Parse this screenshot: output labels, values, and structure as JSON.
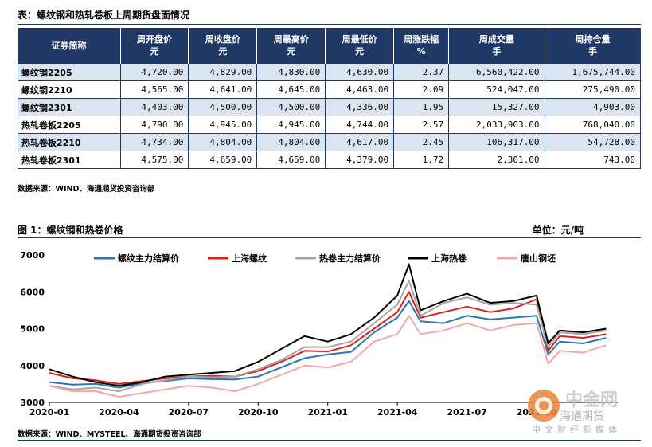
{
  "table_title": "表：螺纹钢和热轧卷板上周期货盘面情况",
  "columns": [
    {
      "l1": "证券简称",
      "l2": ""
    },
    {
      "l1": "周开盘价",
      "l2": "元"
    },
    {
      "l1": "周收盘价",
      "l2": "元"
    },
    {
      "l1": "周最高价",
      "l2": "元"
    },
    {
      "l1": "周最低价",
      "l2": "元"
    },
    {
      "l1": "周涨跌幅",
      "l2": "%"
    },
    {
      "l1": "周成交量",
      "l2": "手"
    },
    {
      "l1": "周持仓量",
      "l2": "手"
    }
  ],
  "rows": [
    [
      "螺纹钢2205",
      "4,720.00",
      "4,829.00",
      "4,830.00",
      "4,630.00",
      "2.37",
      "6,560,422.00",
      "1,675,744.00"
    ],
    [
      "螺纹钢2210",
      "4,565.00",
      "4,641.00",
      "4,645.00",
      "4,463.00",
      "2.09",
      "524,047.00",
      "275,490.00"
    ],
    [
      "螺纹钢2301",
      "4,403.00",
      "4,500.00",
      "4,500.00",
      "4,336.00",
      "1.95",
      "15,327.00",
      "4,903.00"
    ],
    [
      "热轧卷板2205",
      "4,790.00",
      "4,945.00",
      "4,945.00",
      "4,744.00",
      "2.57",
      "2,033,903.00",
      "768,040.00"
    ],
    [
      "热轧卷板2210",
      "4,734.00",
      "4,804.00",
      "4,804.00",
      "4,617.00",
      "2.45",
      "106,317.00",
      "54,728.00"
    ],
    [
      "热轧卷板2301",
      "4,575.00",
      "4,659.00",
      "4,659.00",
      "4,379.00",
      "1.72",
      "2,301.00",
      "743.00"
    ]
  ],
  "table_source": "数据来源：WIND、海通期货投资咨询部",
  "figure_title": "图 1：螺纹钢和热卷价格",
  "figure_unit": "单位：元/吨",
  "figure_source": "数据来源：WIND、MYSTEEL、海通期货投资咨询部",
  "watermark": {
    "brand": "中金网",
    "sub": "中文财经新媒体",
    "overlay": "海通期货"
  },
  "chart_data": {
    "type": "line",
    "ylim": [
      3000,
      7000
    ],
    "y_ticks": [
      3000,
      4000,
      5000,
      6000,
      7000
    ],
    "x_ticks": [
      "2020-01",
      "2020-04",
      "2020-07",
      "2020-10",
      "2021-01",
      "2021-04",
      "2021-07",
      "2021-10"
    ],
    "x_range": [
      0,
      24.5
    ],
    "x": [
      0,
      1,
      2,
      3,
      4,
      5,
      6,
      7,
      8,
      9,
      10,
      11,
      12,
      13,
      14,
      15,
      15.5,
      16,
      17,
      18,
      19,
      20,
      21,
      21.5,
      22,
      23,
      24
    ],
    "series": [
      {
        "name": "螺纹主力结算价",
        "color": "#2e75b6",
        "width": 2,
        "values": [
          3550,
          3480,
          3500,
          3400,
          3520,
          3580,
          3650,
          3630,
          3620,
          3700,
          3950,
          4200,
          4300,
          4370,
          4900,
          5300,
          5750,
          5200,
          5150,
          5350,
          5250,
          5300,
          5350,
          4300,
          4650,
          4600,
          4750
        ]
      },
      {
        "name": "上海螺纹",
        "color": "#e0201b",
        "width": 2,
        "values": [
          3800,
          3650,
          3600,
          3500,
          3580,
          3650,
          3700,
          3720,
          3700,
          3850,
          4100,
          4400,
          4380,
          4550,
          5000,
          5450,
          6000,
          5300,
          5450,
          5600,
          5450,
          5550,
          5800,
          4400,
          4800,
          4750,
          4850
        ]
      },
      {
        "name": "热卷主力结算价",
        "color": "#a6a6a6",
        "width": 2,
        "values": [
          3450,
          3350,
          3400,
          3300,
          3500,
          3600,
          3700,
          3680,
          3700,
          3900,
          4150,
          4500,
          4500,
          4650,
          5150,
          5650,
          6300,
          5350,
          5700,
          5850,
          5650,
          5700,
          5650,
          4500,
          4900,
          4850,
          4950
        ]
      },
      {
        "name": "上海热卷",
        "color": "#000000",
        "width": 2,
        "values": [
          3900,
          3700,
          3550,
          3450,
          3550,
          3700,
          3750,
          3800,
          3850,
          4100,
          4450,
          4800,
          4650,
          4850,
          5300,
          5900,
          6750,
          5500,
          5750,
          5950,
          5700,
          5750,
          5900,
          4600,
          4950,
          4900,
          5000
        ]
      },
      {
        "name": "唐山钢坯",
        "color": "#f4a7a7",
        "width": 2,
        "values": [
          3450,
          3300,
          3300,
          3150,
          3250,
          3350,
          3450,
          3400,
          3300,
          3500,
          3750,
          4000,
          3950,
          4100,
          4650,
          4850,
          5350,
          4850,
          4950,
          5150,
          4950,
          5100,
          5150,
          4050,
          4400,
          4350,
          4550
        ]
      }
    ]
  }
}
